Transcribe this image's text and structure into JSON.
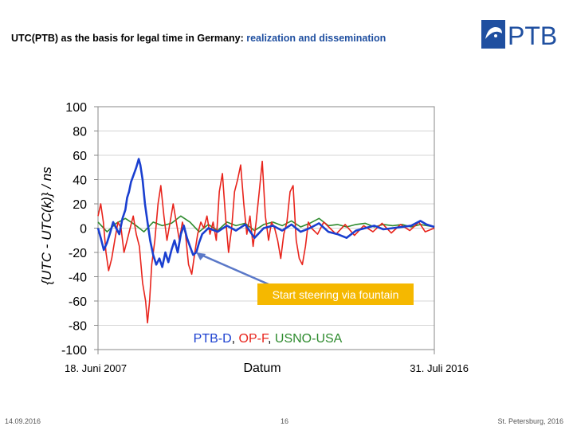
{
  "slide": {
    "title_main": "UTC(PTB) as the basis for legal time in Germany: ",
    "title_accent": "realization and dissemination",
    "logo_text": "PTB",
    "footer_left": "14.09.2016",
    "footer_center": "16",
    "footer_right": "St. Petersburg, 2016"
  },
  "colors": {
    "accent": "#1f4fa0",
    "ptb": "#1a3fd0",
    "opf": "#e8241c",
    "usno": "#2e8b2e",
    "annotation_bg": "#f5b800"
  },
  "chart_data": {
    "type": "line",
    "ylabel": "{UTC - UTC(k)} / ns",
    "xlabel": "Datum",
    "x_start_label": "18. Juni 2007",
    "x_end_label": "31. Juli 2016",
    "x_range": [
      "2007-06-18",
      "2016-07-31"
    ],
    "ylim": [
      -100,
      100
    ],
    "yticks": [
      100,
      80,
      60,
      40,
      20,
      0,
      -20,
      -40,
      -60,
      -80,
      -100
    ],
    "grid": true,
    "legend_position": "bottom",
    "legend": [
      {
        "label": "PTB-D",
        "sep": ",",
        "color": "#1a3fd0"
      },
      {
        "label": "OP-F",
        "sep": ",",
        "color": "#e8241c"
      },
      {
        "label": "USNO-USA",
        "sep": "",
        "color": "#2e8b2e"
      }
    ],
    "annotation": {
      "text": "Start steering via fountain",
      "x": "2010-02-15",
      "y": -20
    },
    "series": [
      {
        "name": "PTB-D",
        "color": "#1a3fd0",
        "points": [
          [
            "2007-06-18",
            0
          ],
          [
            "2007-07-15",
            -8
          ],
          [
            "2007-08-15",
            -18
          ],
          [
            "2007-09-15",
            -12
          ],
          [
            "2007-10-15",
            -4
          ],
          [
            "2007-11-15",
            5
          ],
          [
            "2007-12-15",
            0
          ],
          [
            "2008-01-15",
            -5
          ],
          [
            "2008-02-15",
            8
          ],
          [
            "2008-03-15",
            15
          ],
          [
            "2008-04-01",
            25
          ],
          [
            "2008-04-20",
            30
          ],
          [
            "2008-05-10",
            38
          ],
          [
            "2008-06-01",
            43
          ],
          [
            "2008-07-01",
            50
          ],
          [
            "2008-07-25",
            57
          ],
          [
            "2008-08-10",
            52
          ],
          [
            "2008-09-01",
            40
          ],
          [
            "2008-09-25",
            20
          ],
          [
            "2008-10-20",
            5
          ],
          [
            "2008-11-15",
            -10
          ],
          [
            "2008-12-15",
            -22
          ],
          [
            "2009-01-15",
            -30
          ],
          [
            "2009-02-15",
            -25
          ],
          [
            "2009-03-15",
            -32
          ],
          [
            "2009-04-15",
            -20
          ],
          [
            "2009-05-15",
            -28
          ],
          [
            "2009-06-15",
            -18
          ],
          [
            "2009-07-15",
            -10
          ],
          [
            "2009-08-15",
            -20
          ],
          [
            "2009-09-15",
            -5
          ],
          [
            "2009-10-15",
            2
          ],
          [
            "2009-11-15",
            -8
          ],
          [
            "2009-12-15",
            -15
          ],
          [
            "2010-01-15",
            -22
          ],
          [
            "2010-02-15",
            -20
          ],
          [
            "2010-03-15",
            -12
          ],
          [
            "2010-04-15",
            -5
          ],
          [
            "2010-06-15",
            0
          ],
          [
            "2010-09-15",
            -3
          ],
          [
            "2010-12-15",
            2
          ],
          [
            "2011-03-15",
            -2
          ],
          [
            "2011-06-15",
            3
          ],
          [
            "2011-09-15",
            -8
          ],
          [
            "2011-12-15",
            0
          ],
          [
            "2012-03-15",
            2
          ],
          [
            "2012-06-15",
            -2
          ],
          [
            "2012-09-15",
            3
          ],
          [
            "2012-12-15",
            -3
          ],
          [
            "2013-03-15",
            0
          ],
          [
            "2013-06-15",
            4
          ],
          [
            "2013-09-15",
            -3
          ],
          [
            "2013-12-15",
            -5
          ],
          [
            "2014-03-15",
            -8
          ],
          [
            "2014-06-15",
            -2
          ],
          [
            "2014-09-15",
            0
          ],
          [
            "2014-12-15",
            2
          ],
          [
            "2015-03-15",
            -1
          ],
          [
            "2015-06-15",
            0
          ],
          [
            "2015-09-15",
            1
          ],
          [
            "2015-12-15",
            2
          ],
          [
            "2016-03-15",
            6
          ],
          [
            "2016-05-15",
            3
          ],
          [
            "2016-07-31",
            1
          ]
        ]
      },
      {
        "name": "OP-F",
        "color": "#e8241c",
        "points": [
          [
            "2007-06-18",
            10
          ],
          [
            "2007-07-15",
            20
          ],
          [
            "2007-08-10",
            5
          ],
          [
            "2007-09-05",
            -20
          ],
          [
            "2007-10-01",
            -35
          ],
          [
            "2007-11-01",
            -25
          ],
          [
            "2007-12-01",
            -10
          ],
          [
            "2008-01-01",
            5
          ],
          [
            "2008-02-01",
            0
          ],
          [
            "2008-03-01",
            -20
          ],
          [
            "2008-04-01",
            -10
          ],
          [
            "2008-05-01",
            0
          ],
          [
            "2008-06-01",
            10
          ],
          [
            "2008-07-01",
            -5
          ],
          [
            "2008-08-01",
            -15
          ],
          [
            "2008-09-01",
            -45
          ],
          [
            "2008-10-01",
            -60
          ],
          [
            "2008-10-20",
            -78
          ],
          [
            "2008-11-10",
            -60
          ],
          [
            "2008-12-01",
            -30
          ],
          [
            "2009-01-01",
            -10
          ],
          [
            "2009-02-01",
            20
          ],
          [
            "2009-03-01",
            35
          ],
          [
            "2009-04-01",
            10
          ],
          [
            "2009-05-01",
            -10
          ],
          [
            "2009-06-01",
            5
          ],
          [
            "2009-07-01",
            20
          ],
          [
            "2009-08-01",
            5
          ],
          [
            "2009-09-01",
            -10
          ],
          [
            "2009-10-01",
            5
          ],
          [
            "2009-11-01",
            -5
          ],
          [
            "2009-12-01",
            -30
          ],
          [
            "2010-01-01",
            -38
          ],
          [
            "2010-02-01",
            -20
          ],
          [
            "2010-03-01",
            -5
          ],
          [
            "2010-04-01",
            5
          ],
          [
            "2010-05-01",
            0
          ],
          [
            "2010-06-01",
            10
          ],
          [
            "2010-07-01",
            -5
          ],
          [
            "2010-08-01",
            5
          ],
          [
            "2010-09-01",
            -10
          ],
          [
            "2010-10-01",
            30
          ],
          [
            "2010-11-01",
            45
          ],
          [
            "2010-12-01",
            10
          ],
          [
            "2011-01-01",
            -20
          ],
          [
            "2011-02-01",
            0
          ],
          [
            "2011-03-01",
            30
          ],
          [
            "2011-04-01",
            40
          ],
          [
            "2011-05-01",
            52
          ],
          [
            "2011-06-01",
            20
          ],
          [
            "2011-07-01",
            -5
          ],
          [
            "2011-08-01",
            10
          ],
          [
            "2011-09-01",
            -15
          ],
          [
            "2011-10-01",
            5
          ],
          [
            "2011-11-01",
            30
          ],
          [
            "2011-12-01",
            55
          ],
          [
            "2012-01-01",
            10
          ],
          [
            "2012-02-01",
            -10
          ],
          [
            "2012-03-01",
            5
          ],
          [
            "2012-04-01",
            0
          ],
          [
            "2012-05-01",
            -10
          ],
          [
            "2012-06-01",
            -25
          ],
          [
            "2012-07-01",
            -5
          ],
          [
            "2012-08-01",
            5
          ],
          [
            "2012-09-01",
            30
          ],
          [
            "2012-10-01",
            35
          ],
          [
            "2012-11-01",
            -10
          ],
          [
            "2012-12-01",
            -25
          ],
          [
            "2013-01-01",
            -30
          ],
          [
            "2013-02-01",
            -15
          ],
          [
            "2013-03-01",
            5
          ],
          [
            "2013-04-01",
            0
          ],
          [
            "2013-06-01",
            -5
          ],
          [
            "2013-08-01",
            5
          ],
          [
            "2013-10-01",
            0
          ],
          [
            "2013-12-01",
            -5
          ],
          [
            "2014-03-01",
            3
          ],
          [
            "2014-06-01",
            -6
          ],
          [
            "2014-09-01",
            2
          ],
          [
            "2014-12-01",
            -3
          ],
          [
            "2015-03-01",
            4
          ],
          [
            "2015-06-01",
            -4
          ],
          [
            "2015-09-01",
            3
          ],
          [
            "2015-12-01",
            -2
          ],
          [
            "2016-03-01",
            5
          ],
          [
            "2016-05-01",
            -3
          ],
          [
            "2016-07-31",
            0
          ]
        ]
      },
      {
        "name": "USNO-USA",
        "color": "#2e8b2e",
        "points": [
          [
            "2007-06-18",
            5
          ],
          [
            "2007-09-15",
            -3
          ],
          [
            "2007-12-15",
            4
          ],
          [
            "2008-03-15",
            8
          ],
          [
            "2008-06-15",
            3
          ],
          [
            "2008-09-15",
            -3
          ],
          [
            "2008-12-15",
            5
          ],
          [
            "2009-03-15",
            2
          ],
          [
            "2009-06-15",
            4
          ],
          [
            "2009-09-15",
            10
          ],
          [
            "2009-12-15",
            5
          ],
          [
            "2010-03-15",
            -3
          ],
          [
            "2010-06-15",
            3
          ],
          [
            "2010-09-15",
            -2
          ],
          [
            "2010-12-15",
            5
          ],
          [
            "2011-03-15",
            2
          ],
          [
            "2011-06-15",
            4
          ],
          [
            "2011-09-15",
            -2
          ],
          [
            "2011-12-15",
            3
          ],
          [
            "2012-03-15",
            5
          ],
          [
            "2012-06-15",
            2
          ],
          [
            "2012-09-15",
            6
          ],
          [
            "2012-12-15",
            1
          ],
          [
            "2013-03-15",
            4
          ],
          [
            "2013-06-15",
            8
          ],
          [
            "2013-09-15",
            2
          ],
          [
            "2013-12-15",
            3
          ],
          [
            "2014-03-15",
            1
          ],
          [
            "2014-06-15",
            3
          ],
          [
            "2014-09-15",
            4
          ],
          [
            "2014-12-15",
            1
          ],
          [
            "2015-03-15",
            3
          ],
          [
            "2015-06-15",
            2
          ],
          [
            "2015-09-15",
            3
          ],
          [
            "2015-12-15",
            1
          ],
          [
            "2016-03-15",
            3
          ],
          [
            "2016-07-31",
            1
          ]
        ]
      }
    ]
  }
}
